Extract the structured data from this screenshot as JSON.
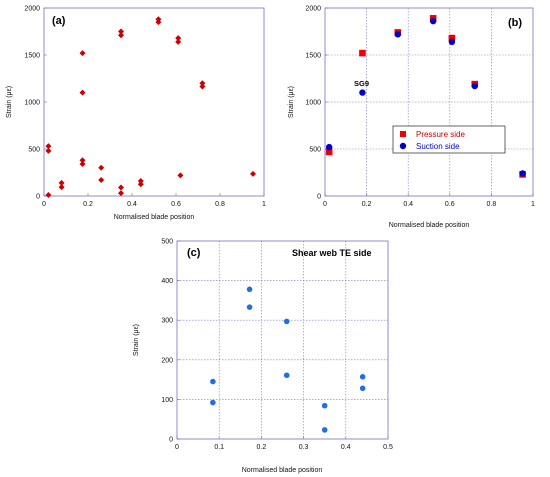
{
  "chart_data": [
    {
      "panel_label": "(a)",
      "type": "scatter",
      "xlabel": "Normalised blade position",
      "ylabel": "Strain (με)",
      "xlim": [
        0,
        1
      ],
      "ylim": [
        0,
        2000
      ],
      "xticks": [
        "0",
        "0.2",
        "0.4",
        "0.6",
        "0.8",
        "1"
      ],
      "yticks": [
        "0",
        "500",
        "1000",
        "1500",
        "2000"
      ],
      "grid": false,
      "series": [
        {
          "marker": "diamond",
          "color": "#cc0000",
          "points": [
            [
              0.02,
              530
            ],
            [
              0.02,
              480
            ],
            [
              0.02,
              10
            ],
            [
              0.08,
              140
            ],
            [
              0.08,
              95
            ],
            [
              0.175,
              1520
            ],
            [
              0.175,
              1100
            ],
            [
              0.175,
              380
            ],
            [
              0.175,
              340
            ],
            [
              0.26,
              300
            ],
            [
              0.26,
              170
            ],
            [
              0.35,
              1750
            ],
            [
              0.35,
              1710
            ],
            [
              0.35,
              90
            ],
            [
              0.35,
              30
            ],
            [
              0.44,
              160
            ],
            [
              0.44,
              125
            ],
            [
              0.52,
              1880
            ],
            [
              0.52,
              1850
            ],
            [
              0.61,
              1680
            ],
            [
              0.61,
              1640
            ],
            [
              0.62,
              220
            ],
            [
              0.72,
              1200
            ],
            [
              0.72,
              1165
            ],
            [
              0.95,
              235
            ]
          ]
        }
      ]
    },
    {
      "panel_label": "(b)",
      "type": "scatter",
      "xlabel": "Normalised blade position",
      "ylabel": "Strain (με)",
      "xlim": [
        0,
        1
      ],
      "ylim": [
        0,
        2000
      ],
      "xticks": [
        "0",
        "0.2",
        "0.4",
        "0.6",
        "0.8",
        "1"
      ],
      "yticks": [
        "0",
        "500",
        "1000",
        "1500",
        "2000"
      ],
      "grid": true,
      "annotation": "SG9",
      "legend_position": "center-right",
      "series": [
        {
          "name": "Pressure side",
          "marker": "square",
          "color": "#ee0000",
          "points": [
            [
              0.02,
              470
            ],
            [
              0.18,
              1520
            ],
            [
              0.35,
              1740
            ],
            [
              0.52,
              1890
            ],
            [
              0.61,
              1680
            ],
            [
              0.72,
              1190
            ],
            [
              0.95,
              230
            ]
          ]
        },
        {
          "name": "Suction side",
          "marker": "circle",
          "color": "#0000cc",
          "points": [
            [
              0.02,
              520
            ],
            [
              0.18,
              1100
            ],
            [
              0.35,
              1720
            ],
            [
              0.52,
              1860
            ],
            [
              0.61,
              1640
            ],
            [
              0.72,
              1170
            ],
            [
              0.95,
              240
            ]
          ]
        }
      ]
    },
    {
      "panel_label": "(c)",
      "type": "scatter",
      "title": "Shear web TE side",
      "xlabel": "Normalised blade position",
      "ylabel": "Strain (με)",
      "xlim": [
        0,
        0.5
      ],
      "ylim": [
        0,
        500
      ],
      "xticks": [
        "0",
        "0.1",
        "0.2",
        "0.3",
        "0.4",
        "0.5"
      ],
      "yticks": [
        "0",
        "100",
        "200",
        "300",
        "400",
        "500"
      ],
      "grid": true,
      "series": [
        {
          "marker": "circle",
          "color": "#1f6fe0",
          "points": [
            [
              0.085,
              145
            ],
            [
              0.085,
              92
            ],
            [
              0.172,
              378
            ],
            [
              0.172,
              333
            ],
            [
              0.26,
              297
            ],
            [
              0.26,
              161
            ],
            [
              0.35,
              84
            ],
            [
              0.35,
              23
            ],
            [
              0.44,
              157
            ],
            [
              0.44,
              128
            ]
          ]
        }
      ]
    }
  ]
}
